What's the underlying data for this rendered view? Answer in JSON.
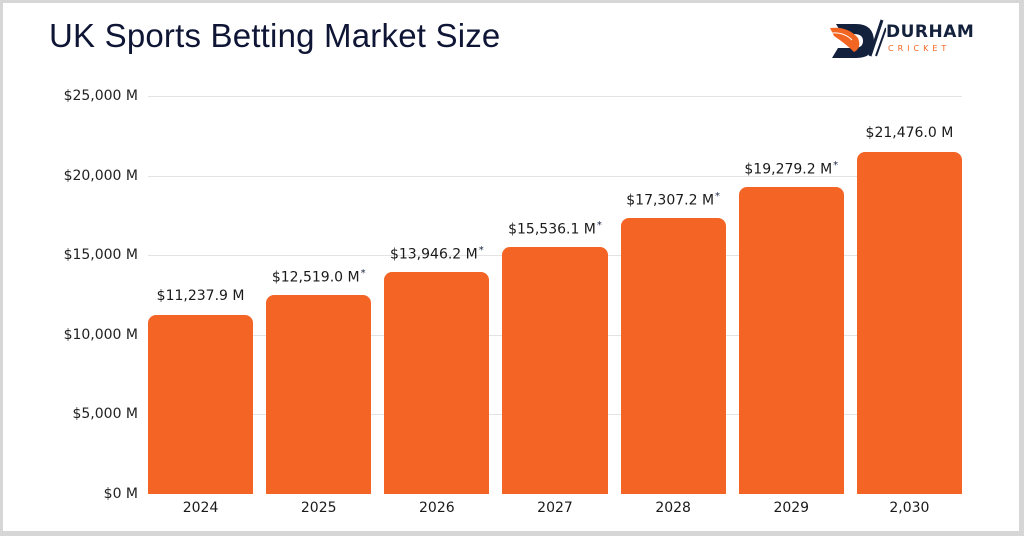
{
  "header": {
    "title": "UK Sports Betting Market Size",
    "logo": {
      "name": "DURHAM",
      "subtitle": "CRICKET"
    }
  },
  "colors": {
    "bar": "#f46424",
    "title": "#0f1535",
    "logo_dark": "#14213d",
    "logo_accent": "#f26522"
  },
  "chart_data": {
    "type": "bar",
    "title": "UK Sports Betting Market Size",
    "xlabel": "",
    "ylabel": "",
    "categories": [
      "2024",
      "2025",
      "2026",
      "2027",
      "2028",
      "2029",
      "2,030"
    ],
    "values": [
      11237.9,
      12519.0,
      13946.2,
      15536.1,
      17307.2,
      19279.2,
      21476.0
    ],
    "value_labels": [
      "$11,237.9 M",
      "$12,519.0 M",
      "$13,946.2 M",
      "$15,536.1 M",
      "$17,307.2 M",
      "$19,279.2 M",
      "$21,476.0 M"
    ],
    "projected": [
      false,
      true,
      true,
      true,
      true,
      true,
      false
    ],
    "projected_marker": "*",
    "yticks": [
      "$0 M",
      "$5,000 M",
      "$10,000 M",
      "$15,000 M",
      "$20,000 M",
      "$25,000 M"
    ],
    "ytick_values": [
      0,
      5000,
      10000,
      15000,
      20000,
      25000
    ],
    "ylim": [
      0,
      25000
    ],
    "grid": true,
    "legend": null
  }
}
